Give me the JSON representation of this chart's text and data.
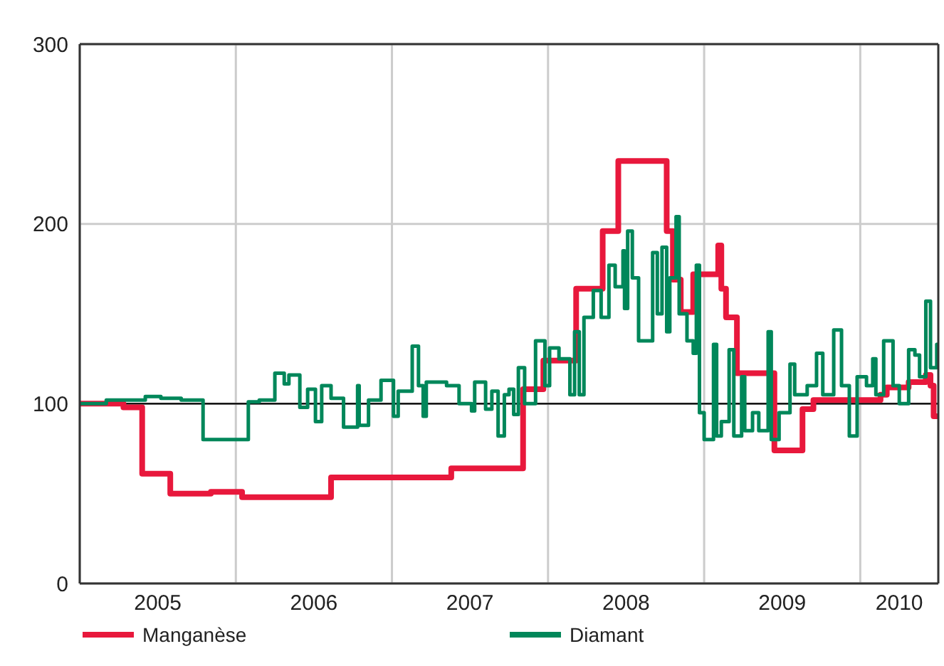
{
  "chart_data": {
    "type": "step",
    "xlim": [
      2005,
      2010.5
    ],
    "xticks": [
      {
        "value": 2005,
        "label": null
      },
      {
        "value": 2005.5,
        "label": "2005"
      },
      {
        "value": 2006,
        "label": null
      },
      {
        "value": 2006.5,
        "label": "2006"
      },
      {
        "value": 2007,
        "label": null
      },
      {
        "value": 2007.5,
        "label": "2007"
      },
      {
        "value": 2008,
        "label": null
      },
      {
        "value": 2008.5,
        "label": "2008"
      },
      {
        "value": 2009,
        "label": null
      },
      {
        "value": 2009.5,
        "label": "2009"
      },
      {
        "value": 2010,
        "label": null
      },
      {
        "value": 2010.25,
        "label": "2010"
      }
    ],
    "ylim": [
      0,
      300
    ],
    "yticks": [
      0,
      100,
      200,
      300
    ],
    "grid": true,
    "legend": "bottom",
    "marker": "none",
    "line_style": "solid",
    "ref_lines": [
      {
        "axis": "y",
        "value": 100,
        "label": null,
        "color": "#000000"
      }
    ],
    "series": [
      {
        "name": "Manganèse",
        "color": "#e8183c",
        "x": [
          2005.0,
          2005.28,
          2005.4,
          2005.58,
          2005.84,
          2006.04,
          2006.61,
          2007.38,
          2007.84,
          2007.97,
          2008.18,
          2008.35,
          2008.45,
          2008.76,
          2008.8,
          2008.85,
          2008.93,
          2009.09,
          2009.11,
          2009.14,
          2009.21,
          2009.45,
          2009.63,
          2009.7,
          2010.13,
          2010.17,
          2010.31,
          2010.42,
          2010.45,
          2010.47,
          2010.5
        ],
        "values": [
          100,
          98,
          61,
          50,
          51,
          48,
          59,
          64,
          108,
          124,
          164,
          196,
          235,
          196,
          169,
          151,
          172,
          188,
          164,
          148,
          117,
          74,
          97,
          102,
          105,
          109,
          112,
          116,
          110,
          93,
          93
        ]
      },
      {
        "name": "Diamant",
        "color": "#00875a",
        "x": [
          2005.0,
          2005.17,
          2005.42,
          2005.52,
          2005.65,
          2005.79,
          2006.08,
          2006.15,
          2006.25,
          2006.31,
          2006.34,
          2006.41,
          2006.46,
          2006.51,
          2006.55,
          2006.61,
          2006.69,
          2006.78,
          2006.79,
          2006.85,
          2006.93,
          2007.01,
          2007.04,
          2007.13,
          2007.17,
          2007.2,
          2007.22,
          2007.35,
          2007.43,
          2007.51,
          2007.53,
          2007.6,
          2007.64,
          2007.68,
          2007.72,
          2007.75,
          2007.78,
          2007.81,
          2007.85,
          2007.92,
          2007.98,
          2008.01,
          2008.07,
          2008.14,
          2008.17,
          2008.2,
          2008.23,
          2008.29,
          2008.34,
          2008.39,
          2008.43,
          2008.48,
          2008.49,
          2008.51,
          2008.54,
          2008.58,
          2008.66,
          2008.67,
          2008.7,
          2008.73,
          2008.76,
          2008.78,
          2008.82,
          2008.84,
          2008.89,
          2008.93,
          2008.95,
          2008.97,
          2009.0,
          2009.06,
          2009.08,
          2009.11,
          2009.16,
          2009.19,
          2009.24,
          2009.26,
          2009.31,
          2009.35,
          2009.41,
          2009.43,
          2009.48,
          2009.55,
          2009.58,
          2009.66,
          2009.72,
          2009.76,
          2009.83,
          2009.88,
          2009.93,
          2009.98,
          2010.04,
          2010.08,
          2010.1,
          2010.15,
          2010.21,
          2010.25,
          2010.31,
          2010.35,
          2010.38,
          2010.42,
          2010.45,
          2010.49,
          2010.5
        ],
        "values": [
          100,
          102,
          104,
          103,
          102,
          80,
          101,
          102,
          117,
          111,
          116,
          98,
          108,
          90,
          110,
          103,
          87,
          110,
          88,
          102,
          113,
          93,
          107,
          132,
          110,
          93,
          112,
          110,
          100,
          96,
          112,
          97,
          107,
          82,
          105,
          108,
          94,
          120,
          100,
          135,
          110,
          131,
          125,
          105,
          140,
          105,
          148,
          163,
          148,
          177,
          165,
          185,
          153,
          196,
          170,
          135,
          135,
          184,
          150,
          187,
          140,
          170,
          204,
          150,
          135,
          128,
          177,
          95,
          80,
          133,
          82,
          90,
          130,
          82,
          115,
          85,
          95,
          85,
          140,
          80,
          95,
          122,
          105,
          110,
          128,
          105,
          141,
          110,
          82,
          115,
          110,
          125,
          105,
          135,
          110,
          100,
          130,
          127,
          115,
          157,
          120,
          133,
          130
        ]
      }
    ]
  }
}
